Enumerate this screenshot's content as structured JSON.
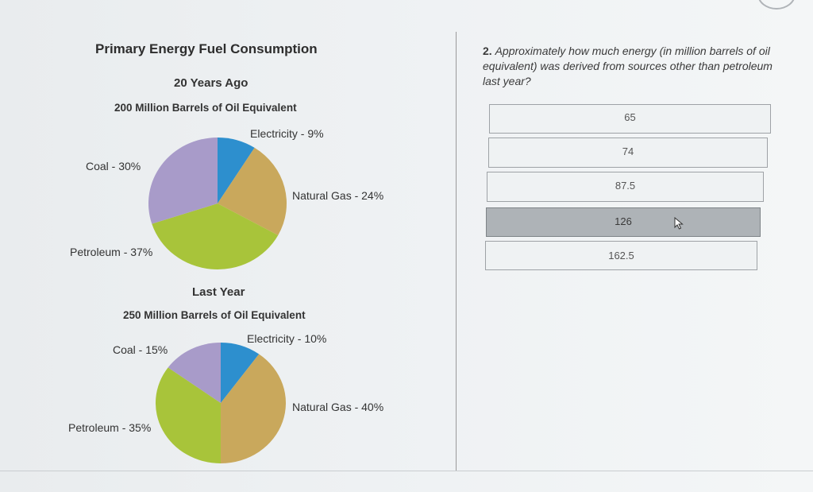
{
  "left": {
    "title": "Primary Energy Fuel Consumption",
    "charts": [
      {
        "title": "20 Years Ago",
        "subtitle": "200 Million Barrels of Oil Equivalent",
        "labels": {
          "electricity": "Electricity - 9%",
          "natural_gas": "Natural Gas - 24%",
          "coal": "Coal - 30%",
          "petroleum": "Petroleum - 37%"
        }
      },
      {
        "title": "Last Year",
        "subtitle": "250 Million Barrels of Oil Equivalent",
        "labels": {
          "electricity": "Electricity - 10%",
          "natural_gas": "Natural Gas - 40%",
          "coal": "Coal - 15%",
          "petroleum": "Petroleum - 35%"
        }
      }
    ]
  },
  "chart_data": [
    {
      "type": "pie",
      "title": "20 Years Ago",
      "subtitle": "200 Million Barrels of Oil Equivalent",
      "categories": [
        "Electricity",
        "Natural Gas",
        "Petroleum",
        "Coal"
      ],
      "values": [
        9,
        24,
        37,
        30
      ],
      "colors": [
        "#2d8fce",
        "#c9a85c",
        "#a8c43a",
        "#a89bc9"
      ]
    },
    {
      "type": "pie",
      "title": "Last Year",
      "subtitle": "250 Million Barrels of Oil Equivalent",
      "categories": [
        "Electricity",
        "Natural Gas",
        "Petroleum",
        "Coal"
      ],
      "values": [
        10,
        40,
        35,
        15
      ],
      "colors": [
        "#2d8fce",
        "#c9a85c",
        "#a8c43a",
        "#a89bc9"
      ]
    }
  ],
  "question": {
    "number": "2.",
    "text": "Approximately how much energy (in million barrels of oil equivalent) was derived from sources other than petroleum last year?"
  },
  "answers": [
    {
      "label": "65",
      "selected": false
    },
    {
      "label": "74",
      "selected": false
    },
    {
      "label": "87.5",
      "selected": false
    },
    {
      "label": "126",
      "selected": true
    },
    {
      "label": "162.5",
      "selected": false
    }
  ],
  "icons": {
    "cursor": "arrow-cursor-icon"
  }
}
